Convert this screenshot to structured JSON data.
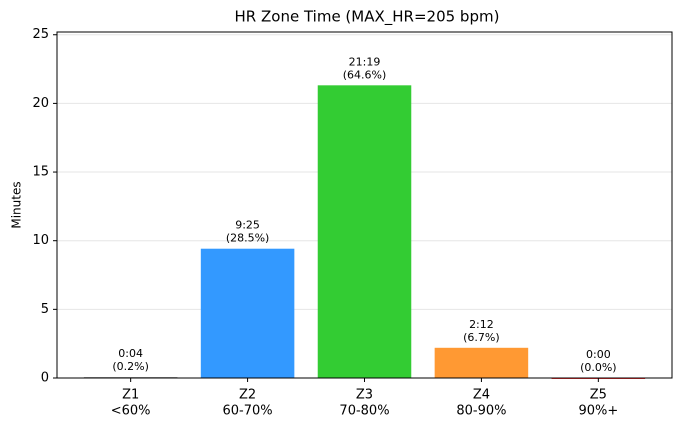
{
  "chart_data": {
    "type": "bar",
    "title": "HR Zone Time (MAX_HR=205 bpm)",
    "y_label": "Minutes",
    "categories": [
      "Z1",
      "Z2",
      "Z3",
      "Z4",
      "Z5"
    ],
    "category_ranges": [
      "<60%",
      "60-70%",
      "70-80%",
      "80-90%",
      "90%+"
    ],
    "values": [
      0.0667,
      9.4167,
      21.3167,
      2.2,
      0
    ],
    "value_labels": [
      "0:04",
      "9:25",
      "21:19",
      "2:12",
      "0:00"
    ],
    "share_labels": [
      "(0.2%)",
      "(28.5%)",
      "(64.6%)",
      "(6.7%)",
      "(0.0%)"
    ],
    "colors": [
      "#999999",
      "#3399ff",
      "#33cc33",
      "#ff9933",
      "#ff3333"
    ],
    "ylim": [
      0,
      25.2
    ],
    "yticks": [
      0,
      5,
      10,
      15,
      20,
      25
    ],
    "grid": true
  }
}
